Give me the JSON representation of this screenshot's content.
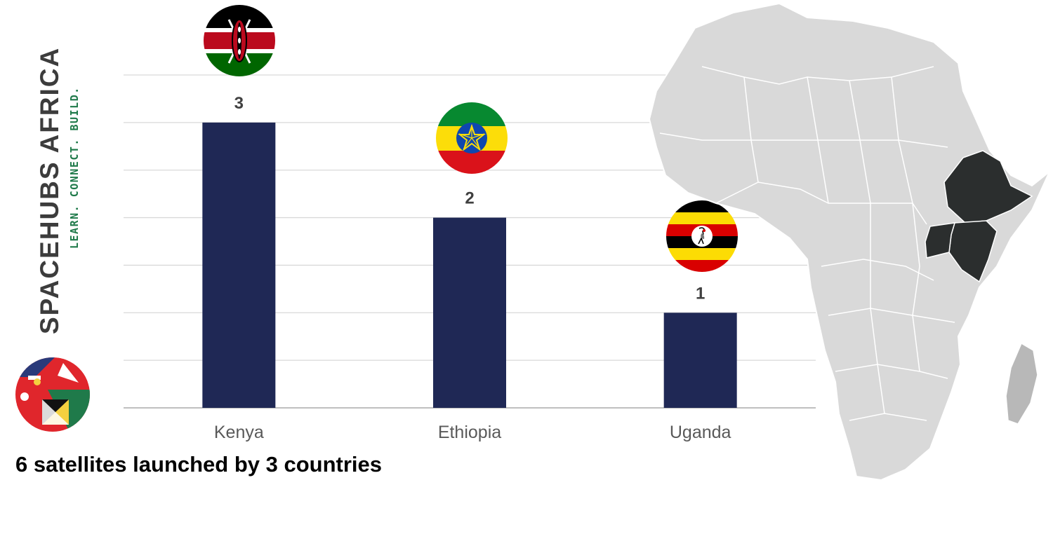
{
  "brand": {
    "name": "SPACEHUBS AFRICA",
    "tagline": "LEARN. CONNECT. BUILD."
  },
  "caption": "6 satellites launched by 3 countries",
  "chart_data": {
    "type": "bar",
    "title": "",
    "xlabel": "",
    "ylabel": "",
    "categories": [
      "Kenya",
      "Ethiopia",
      "Uganda"
    ],
    "values": [
      3,
      2,
      1
    ],
    "ylim": [
      0,
      3.5
    ],
    "grid": true,
    "data_labels": true
  },
  "flags": [
    "kenya-flag-icon",
    "ethiopia-flag-icon",
    "uganda-flag-icon"
  ],
  "highlighted_countries": [
    "Ethiopia",
    "Kenya",
    "Uganda"
  ],
  "colors": {
    "bar": "#1f2855",
    "grid": "#d9d9d9",
    "axis": "#bfbfbf",
    "tick_label": "#595959",
    "value_label": "#404040",
    "caption": "#000000",
    "brand_name": "#3c3c3c",
    "brand_tagline": "#1f7a4a",
    "map_land": "#d9d9d9",
    "map_highlight": "#2b2e2e",
    "map_island": "#b8b8b8",
    "map_border": "#ffffff"
  }
}
